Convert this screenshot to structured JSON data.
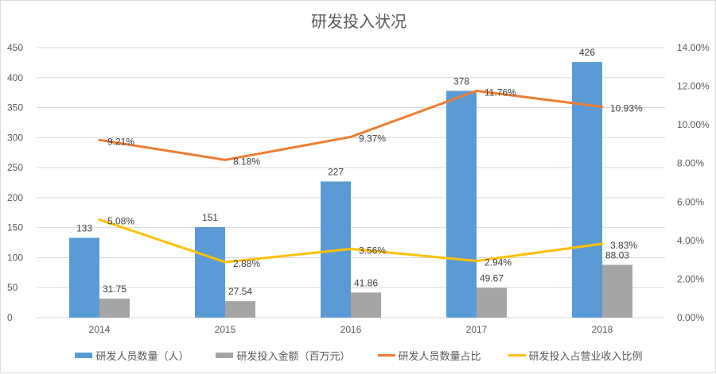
{
  "chart_data": {
    "type": "bar+line",
    "title": "研发投入状况",
    "categories": [
      "2014",
      "2015",
      "2016",
      "2017",
      "2018"
    ],
    "left_axis": {
      "min": 0,
      "max": 450,
      "step": 50,
      "ticks": [
        "0",
        "50",
        "100",
        "150",
        "200",
        "250",
        "300",
        "350",
        "400",
        "450"
      ]
    },
    "right_axis": {
      "min": 0,
      "max": 14,
      "step": 2,
      "ticks": [
        "0.00%",
        "2.00%",
        "4.00%",
        "6.00%",
        "8.00%",
        "10.00%",
        "12.00%",
        "14.00%"
      ]
    },
    "grid": true,
    "legend_position": "bottom",
    "series": [
      {
        "name": "研发人员数量（人）",
        "type": "bar",
        "axis": "left",
        "color": "#5b9bd5",
        "values": [
          133,
          151,
          227,
          378,
          426
        ],
        "labels": [
          "133",
          "151",
          "227",
          "378",
          "426"
        ]
      },
      {
        "name": "研发投入金额（百万元）",
        "type": "bar",
        "axis": "left",
        "color": "#a5a5a5",
        "values": [
          31.75,
          27.54,
          41.86,
          49.67,
          88.03
        ],
        "labels": [
          "31.75",
          "27.54",
          "41.86",
          "49.67",
          "88.03"
        ]
      },
      {
        "name": "研发人员数量占比",
        "type": "line",
        "axis": "right",
        "color": "#ed7d31",
        "values": [
          9.21,
          8.18,
          9.37,
          11.76,
          10.93
        ],
        "labels": [
          "9.21%",
          "8.18%",
          "9.37%",
          "11.76%",
          "10.93%"
        ]
      },
      {
        "name": "研发投入占营业收入比例",
        "type": "line",
        "axis": "right",
        "color": "#ffc000",
        "values": [
          5.08,
          2.88,
          3.56,
          2.94,
          3.83
        ],
        "labels": [
          "5.08%",
          "2.88%",
          "3.56%",
          "2.94%",
          "3.83%"
        ]
      }
    ]
  }
}
